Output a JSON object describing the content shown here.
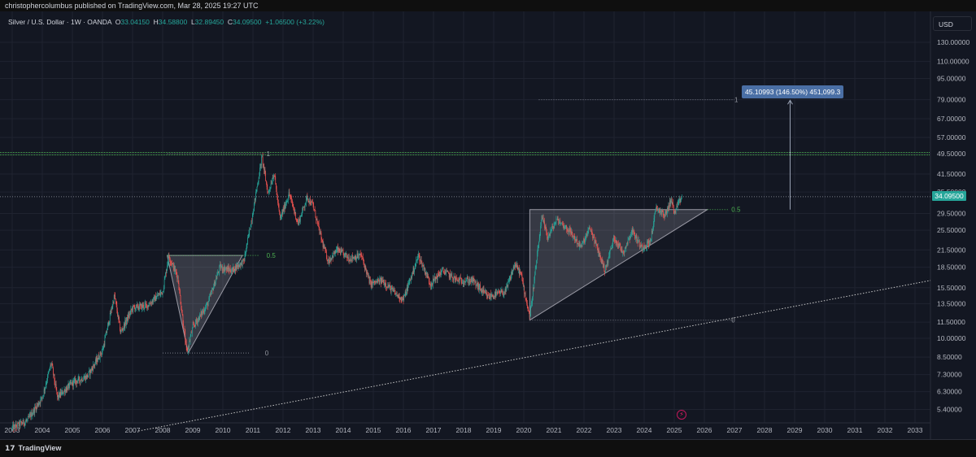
{
  "header": {
    "publish_line": "christophercolumbus published on TradingView.com, Mar 28, 2025 19:27 UTC"
  },
  "legend": {
    "symbol": "Silver / U.S. Dollar · 1W · OANDA",
    "open_label": "O",
    "open": "33.04150",
    "high_label": "H",
    "high": "34.58800",
    "low_label": "L",
    "low": "32.89450",
    "close_label": "C",
    "close": "34.09500",
    "change": "+1.06500 (+3.22%)"
  },
  "currency": "USD",
  "measure_label": "45.10993 (146.50%) 451,099.3",
  "price_tag": "34.09500",
  "footer": {
    "brand": "TradingView"
  },
  "colors": {
    "up": "#26a69a",
    "down": "#ef5350",
    "green_line": "#4caf50",
    "triangle_fill": "rgba(180,180,190,0.22)",
    "measure": "#4a6fa5"
  },
  "chart_data": {
    "type": "candlestick",
    "scale": "log",
    "x_ticks": [
      "2003",
      "2004",
      "2005",
      "2006",
      "2007",
      "2008",
      "2009",
      "2010",
      "2011",
      "2012",
      "2013",
      "2014",
      "2015",
      "2016",
      "2017",
      "2018",
      "2019",
      "2020",
      "2021",
      "2022",
      "2023",
      "2024",
      "2025",
      "2026",
      "2027",
      "2028",
      "2029",
      "2030",
      "2031",
      "2032",
      "2033"
    ],
    "y_ticks": [
      "130.00000",
      "110.00000",
      "95.00000",
      "79.00000",
      "67.00000",
      "57.00000",
      "49.50000",
      "41.50000",
      "35.50000",
      "29.50000",
      "25.50000",
      "21.50000",
      "18.50000",
      "15.50000",
      "13.50000",
      "11.50000",
      "10.00000",
      "8.50000",
      "7.30000",
      "6.30000",
      "5.40000"
    ],
    "ylim": [
      4.6,
      160
    ],
    "price_series": [
      [
        2003.0,
        4.6
      ],
      [
        2003.5,
        4.9
      ],
      [
        2004.0,
        6.0
      ],
      [
        2004.3,
        8.1
      ],
      [
        2004.5,
        6.0
      ],
      [
        2005.0,
        6.8
      ],
      [
        2005.5,
        7.2
      ],
      [
        2006.0,
        9.0
      ],
      [
        2006.4,
        14.5
      ],
      [
        2006.6,
        10.5
      ],
      [
        2007.0,
        13.0
      ],
      [
        2007.5,
        13.3
      ],
      [
        2008.0,
        15.0
      ],
      [
        2008.2,
        20.5
      ],
      [
        2008.5,
        17.0
      ],
      [
        2008.8,
        8.8
      ],
      [
        2009.0,
        11.0
      ],
      [
        2009.5,
        13.5
      ],
      [
        2009.9,
        18.5
      ],
      [
        2010.3,
        18.0
      ],
      [
        2010.7,
        19.5
      ],
      [
        2011.0,
        30.0
      ],
      [
        2011.3,
        48.0
      ],
      [
        2011.5,
        35.0
      ],
      [
        2011.7,
        42.0
      ],
      [
        2011.9,
        28.0
      ],
      [
        2012.2,
        35.0
      ],
      [
        2012.5,
        27.0
      ],
      [
        2012.8,
        34.0
      ],
      [
        2013.0,
        31.5
      ],
      [
        2013.3,
        23.0
      ],
      [
        2013.5,
        19.5
      ],
      [
        2013.8,
        21.5
      ],
      [
        2014.2,
        20.0
      ],
      [
        2014.6,
        20.5
      ],
      [
        2014.9,
        16.0
      ],
      [
        2015.3,
        16.5
      ],
      [
        2015.8,
        14.5
      ],
      [
        2016.0,
        14.0
      ],
      [
        2016.5,
        20.5
      ],
      [
        2016.9,
        16.0
      ],
      [
        2017.3,
        18.0
      ],
      [
        2017.8,
        16.5
      ],
      [
        2018.3,
        16.5
      ],
      [
        2018.8,
        14.3
      ],
      [
        2019.4,
        15.0
      ],
      [
        2019.7,
        19.0
      ],
      [
        2019.9,
        17.5
      ],
      [
        2020.2,
        12.0
      ],
      [
        2020.6,
        28.5
      ],
      [
        2020.8,
        24.0
      ],
      [
        2021.1,
        28.0
      ],
      [
        2021.5,
        25.5
      ],
      [
        2021.9,
        22.0
      ],
      [
        2022.2,
        26.0
      ],
      [
        2022.7,
        18.0
      ],
      [
        2023.0,
        24.0
      ],
      [
        2023.3,
        21.0
      ],
      [
        2023.6,
        25.5
      ],
      [
        2023.9,
        22.0
      ],
      [
        2024.2,
        23.0
      ],
      [
        2024.4,
        31.0
      ],
      [
        2024.7,
        29.0
      ],
      [
        2024.9,
        33.5
      ],
      [
        2025.0,
        29.5
      ],
      [
        2025.25,
        34.09
      ]
    ],
    "annotations": {
      "fib_2008": {
        "level_1": 1,
        "level_05": 0.5,
        "level_0": 0,
        "low": 8.8,
        "high": 49.5,
        "mid": 20.5,
        "labels": [
          "1",
          "0.5",
          "0"
        ]
      },
      "fib_2020": {
        "low": 11.7,
        "high": 79.0,
        "mid": 30.5,
        "labels": [
          "1",
          "0.5",
          "0"
        ]
      },
      "resistance": 49.5,
      "current_price": 34.095,
      "measure_target": 79.2
    }
  }
}
